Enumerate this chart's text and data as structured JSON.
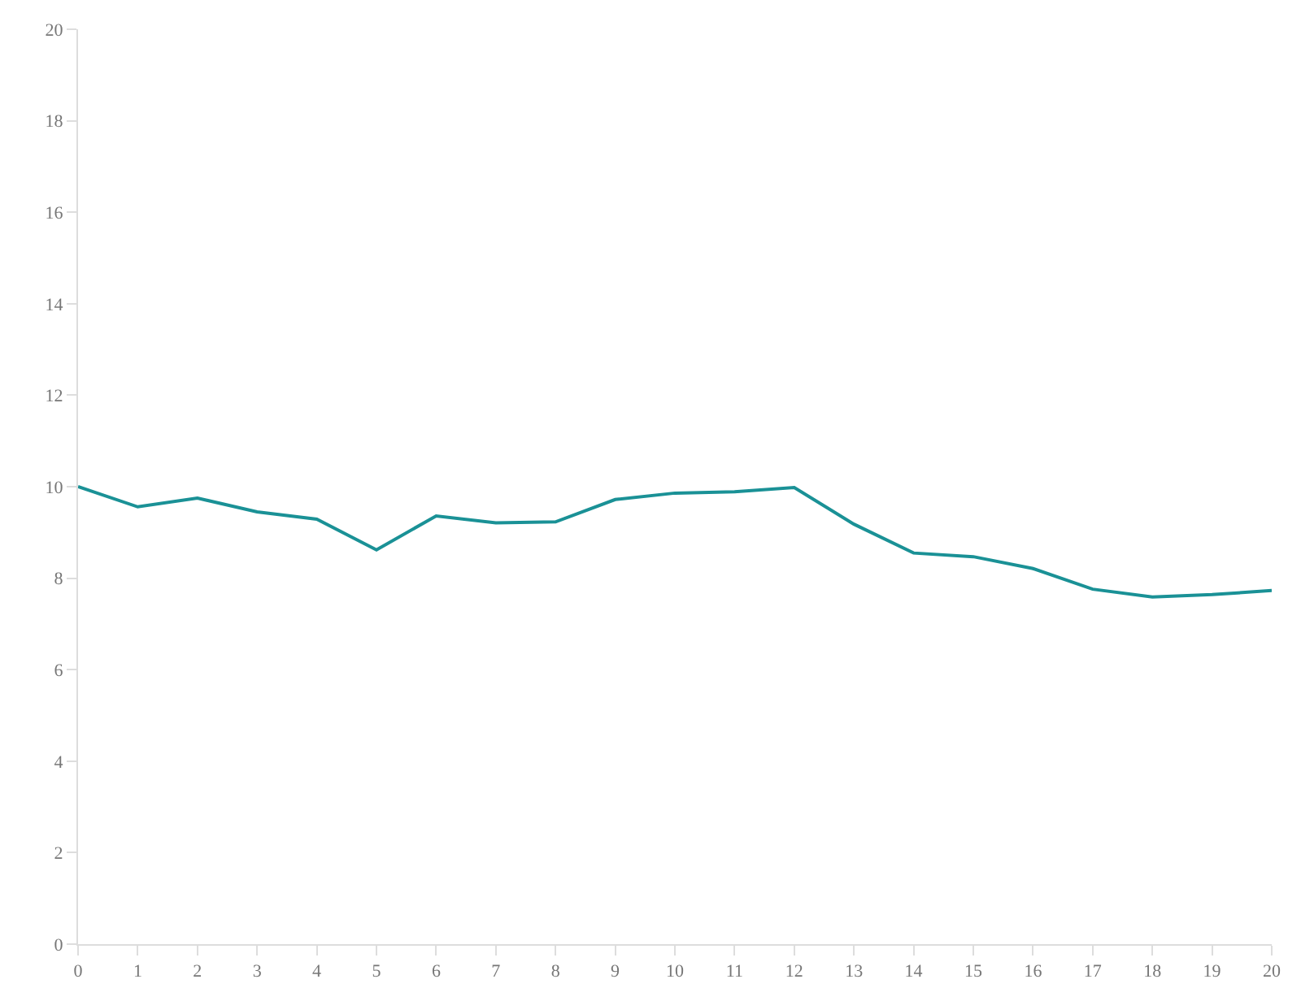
{
  "chart_data": {
    "type": "line",
    "x": [
      0,
      1,
      2,
      3,
      4,
      5,
      6,
      7,
      8,
      9,
      10,
      11,
      12,
      13,
      14,
      15,
      16,
      17,
      18,
      19,
      20
    ],
    "series": [
      {
        "color": "#1a9196",
        "values": [
          10.0,
          9.56,
          9.75,
          9.45,
          9.29,
          8.62,
          9.36,
          9.21,
          9.23,
          9.72,
          9.86,
          9.89,
          9.98,
          9.18,
          8.55,
          8.47,
          8.21,
          7.76,
          7.59,
          7.64,
          7.73
        ]
      }
    ],
    "xlim": [
      0,
      20
    ],
    "xticks": [
      0,
      1,
      2,
      3,
      4,
      5,
      6,
      7,
      8,
      9,
      10,
      11,
      12,
      13,
      14,
      15,
      16,
      17,
      18,
      19,
      20
    ],
    "ylim": [
      0,
      20
    ],
    "yticks": [
      0,
      2,
      4,
      6,
      8,
      10,
      12,
      14,
      16,
      18,
      20
    ],
    "grid": false,
    "legend": false,
    "marker": "none",
    "line_style": "solid"
  }
}
